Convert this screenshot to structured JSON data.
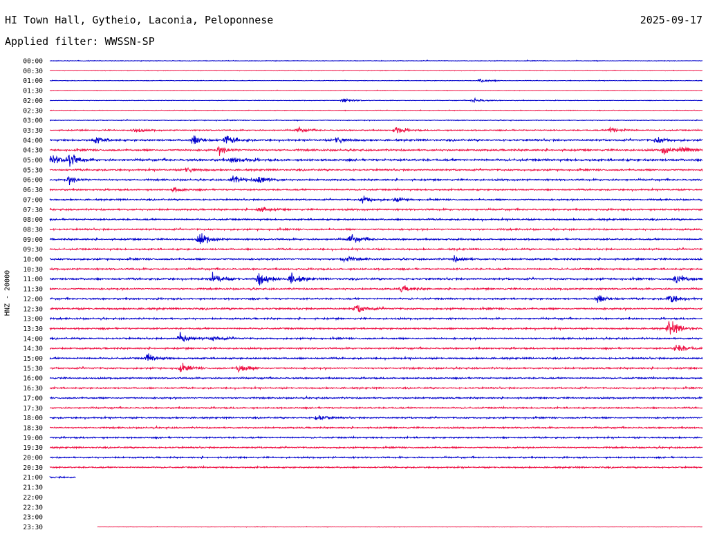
{
  "header": {
    "station": "HI Town Hall, Gytheio, Laconia, Peloponnese",
    "date": "2025-09-17",
    "filter": "Applied filter: WWSSN-SP"
  },
  "chart_data": {
    "type": "line",
    "title": "HI Town Hall, Gytheio, Laconia, Peloponnese",
    "ylabel": "HNZ - 20000",
    "row_labels": [
      "00:00",
      "00:30",
      "01:00",
      "01:30",
      "02:00",
      "02:30",
      "03:00",
      "03:30",
      "04:00",
      "04:30",
      "05:00",
      "05:30",
      "06:00",
      "06:30",
      "07:00",
      "07:30",
      "08:00",
      "08:30",
      "09:00",
      "09:30",
      "10:00",
      "10:30",
      "11:00",
      "11:30",
      "12:00",
      "12:30",
      "13:00",
      "13:30",
      "14:00",
      "14:30",
      "15:00",
      "15:30",
      "16:00",
      "16:30",
      "17:00",
      "17:30",
      "18:00",
      "18:30",
      "19:00",
      "19:30",
      "20:00",
      "20:30",
      "21:00",
      "21:30",
      "22:00",
      "22:30",
      "23:00",
      "23:30"
    ],
    "row_colors": [
      "#0000cc",
      "#ee1144"
    ],
    "amplitude": [
      0.2,
      0.15,
      0.2,
      0.15,
      0.2,
      0.2,
      0.25,
      0.4,
      0.6,
      0.6,
      0.7,
      0.55,
      0.55,
      0.5,
      0.5,
      0.55,
      0.55,
      0.55,
      0.55,
      0.55,
      0.55,
      0.55,
      0.6,
      0.55,
      0.55,
      0.6,
      0.55,
      0.55,
      0.55,
      0.55,
      0.55,
      0.55,
      0.5,
      0.5,
      0.5,
      0.5,
      0.5,
      0.5,
      0.5,
      0.5,
      0.5,
      0.5,
      0.5,
      0,
      0,
      0,
      0,
      0.15
    ],
    "trace_fraction": [
      1,
      1,
      1,
      1,
      1,
      1,
      1,
      1,
      1,
      1,
      1,
      1,
      1,
      1,
      1,
      1,
      1,
      1,
      1,
      1,
      1,
      1,
      1,
      1,
      1,
      1,
      1,
      1,
      1,
      1,
      1,
      1,
      1,
      1,
      1,
      1,
      1,
      1,
      1,
      1,
      1,
      1,
      0.04,
      0,
      0,
      0,
      0,
      1
    ],
    "trace_start_fraction": [
      0,
      0,
      0,
      0,
      0,
      0,
      0,
      0,
      0,
      0,
      0,
      0,
      0,
      0,
      0,
      0,
      0,
      0,
      0,
      0,
      0,
      0,
      0,
      0,
      0,
      0,
      0,
      0,
      0,
      0,
      0,
      0,
      0,
      0,
      0,
      0,
      0,
      0,
      0,
      0,
      0,
      0,
      0,
      0,
      0,
      0,
      0,
      0.073
    ],
    "events": [
      {
        "row": 2,
        "t": 0.66,
        "amp": 0.5
      },
      {
        "row": 4,
        "t": 0.45,
        "amp": 0.6
      },
      {
        "row": 4,
        "t": 0.65,
        "amp": 0.6
      },
      {
        "row": 7,
        "t": 0.13,
        "amp": 0.6
      },
      {
        "row": 7,
        "t": 0.38,
        "amp": 0.7
      },
      {
        "row": 7,
        "t": 0.53,
        "amp": 0.8
      },
      {
        "row": 7,
        "t": 0.86,
        "amp": 1.0
      },
      {
        "row": 8,
        "t": 0.07,
        "amp": 0.9
      },
      {
        "row": 8,
        "t": 0.22,
        "amp": 1.2
      },
      {
        "row": 8,
        "t": 0.27,
        "amp": 1.1
      },
      {
        "row": 8,
        "t": 0.44,
        "amp": 1.0
      },
      {
        "row": 8,
        "t": 0.93,
        "amp": 0.9
      },
      {
        "row": 9,
        "t": 0.26,
        "amp": 1.0
      },
      {
        "row": 9,
        "t": 0.94,
        "amp": 1.0
      },
      {
        "row": 9,
        "t": 0.97,
        "amp": 1.1
      },
      {
        "row": 10,
        "t": 0.0,
        "amp": 1.6
      },
      {
        "row": 10,
        "t": 0.03,
        "amp": 1.5
      },
      {
        "row": 10,
        "t": 0.28,
        "amp": 0.9
      },
      {
        "row": 11,
        "t": 0.21,
        "amp": 0.8
      },
      {
        "row": 12,
        "t": 0.03,
        "amp": 0.9
      },
      {
        "row": 12,
        "t": 0.28,
        "amp": 1.1
      },
      {
        "row": 12,
        "t": 0.32,
        "amp": 1.3
      },
      {
        "row": 13,
        "t": 0.19,
        "amp": 0.6
      },
      {
        "row": 14,
        "t": 0.48,
        "amp": 1.0
      },
      {
        "row": 14,
        "t": 0.53,
        "amp": 0.6
      },
      {
        "row": 15,
        "t": 0.32,
        "amp": 0.9
      },
      {
        "row": 18,
        "t": 0.23,
        "amp": 1.5
      },
      {
        "row": 18,
        "t": 0.46,
        "amp": 1.3
      },
      {
        "row": 20,
        "t": 0.45,
        "amp": 1.0
      },
      {
        "row": 20,
        "t": 0.62,
        "amp": 0.8
      },
      {
        "row": 22,
        "t": 0.25,
        "amp": 1.5
      },
      {
        "row": 22,
        "t": 0.32,
        "amp": 1.8
      },
      {
        "row": 22,
        "t": 0.37,
        "amp": 1.4
      },
      {
        "row": 22,
        "t": 0.96,
        "amp": 1.3
      },
      {
        "row": 23,
        "t": 0.54,
        "amp": 0.8
      },
      {
        "row": 24,
        "t": 0.84,
        "amp": 1.0
      },
      {
        "row": 24,
        "t": 0.95,
        "amp": 1.3
      },
      {
        "row": 25,
        "t": 0.47,
        "amp": 1.2
      },
      {
        "row": 27,
        "t": 0.95,
        "amp": 2.2
      },
      {
        "row": 28,
        "t": 0.2,
        "amp": 1.6
      },
      {
        "row": 28,
        "t": 0.25,
        "amp": 0.7
      },
      {
        "row": 29,
        "t": 0.96,
        "amp": 1.3
      },
      {
        "row": 30,
        "t": 0.15,
        "amp": 1.1
      },
      {
        "row": 31,
        "t": 0.2,
        "amp": 1.0
      },
      {
        "row": 31,
        "t": 0.29,
        "amp": 1.2
      },
      {
        "row": 36,
        "t": 0.41,
        "amp": 0.8
      }
    ]
  }
}
